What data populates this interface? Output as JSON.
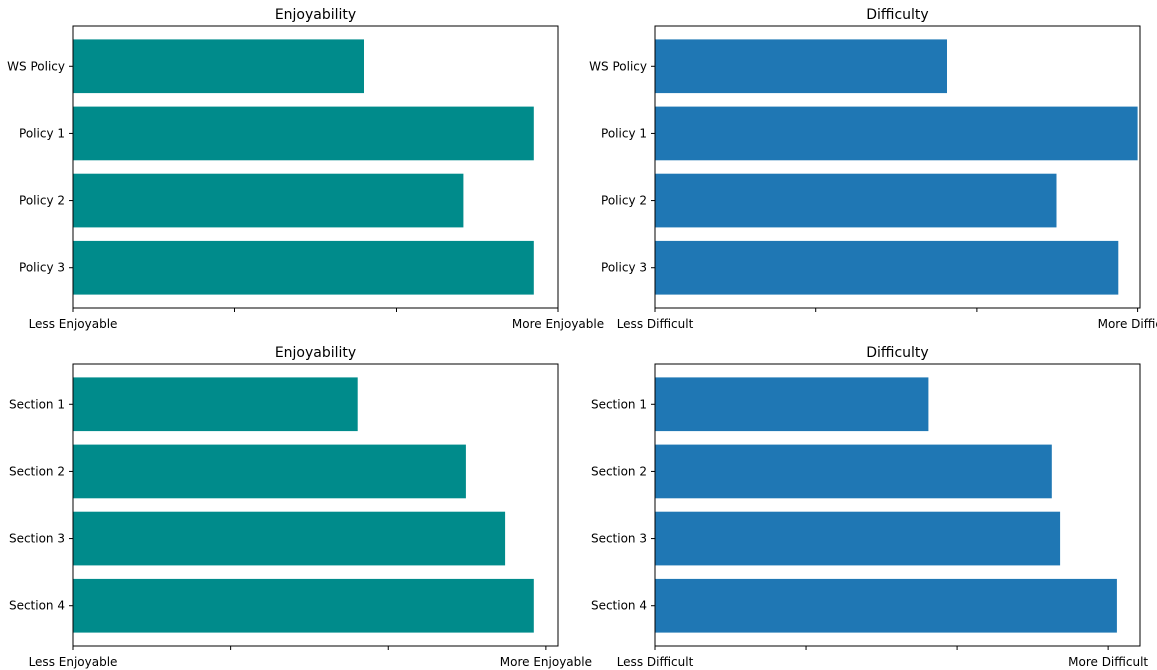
{
  "chart_data": [
    {
      "type": "bar",
      "orientation": "horizontal",
      "title": "Enjoyability",
      "categories": [
        "WS Policy",
        "Policy 1",
        "Policy 2",
        "Policy 3"
      ],
      "values": [
        0.6,
        0.95,
        0.805,
        0.95
      ],
      "xlim": [
        0,
        1
      ],
      "xtick_values": [
        0,
        0.333,
        0.667,
        1
      ],
      "xtick_labels": [
        "Less Enjoyable",
        "",
        "",
        "More Enjoyable"
      ],
      "color": "#008b8b",
      "grid": false
    },
    {
      "type": "bar",
      "orientation": "horizontal",
      "title": "Difficulty",
      "categories": [
        "WS Policy",
        "Policy 1",
        "Policy 2",
        "Policy 3"
      ],
      "values": [
        0.605,
        1.0,
        0.832,
        0.96
      ],
      "xlim": [
        0,
        1.005
      ],
      "xtick_values": [
        0,
        0.333,
        0.667,
        1
      ],
      "xtick_labels": [
        "Less Difficult",
        "",
        "",
        "More Difficult"
      ],
      "color": "#1f77b4",
      "grid": false
    },
    {
      "type": "bar",
      "orientation": "horizontal",
      "title": "Enjoyability",
      "categories": [
        "Section 1",
        "Section 2",
        "Section 3",
        "Section 4"
      ],
      "values": [
        0.587,
        0.81,
        0.891,
        0.95
      ],
      "xlim": [
        0,
        1
      ],
      "xtick_values": [
        0,
        0.325,
        0.65,
        0.975
      ],
      "xtick_labels": [
        "Less Enjoyable",
        "",
        "",
        "More Enjoyable"
      ],
      "color": "#008b8b",
      "grid": false
    },
    {
      "type": "bar",
      "orientation": "horizontal",
      "title": "Difficulty",
      "categories": [
        "Section 1",
        "Section 2",
        "Section 3",
        "Section 4"
      ],
      "values": [
        0.592,
        0.859,
        0.877,
        1.0
      ],
      "xlim": [
        0,
        1.05
      ],
      "xtick_values": [
        0,
        0.327,
        0.654,
        0.981
      ],
      "xtick_labels": [
        "Less Difficult",
        "",
        "",
        "More Difficult"
      ],
      "color": "#1f77b4",
      "grid": false
    }
  ]
}
